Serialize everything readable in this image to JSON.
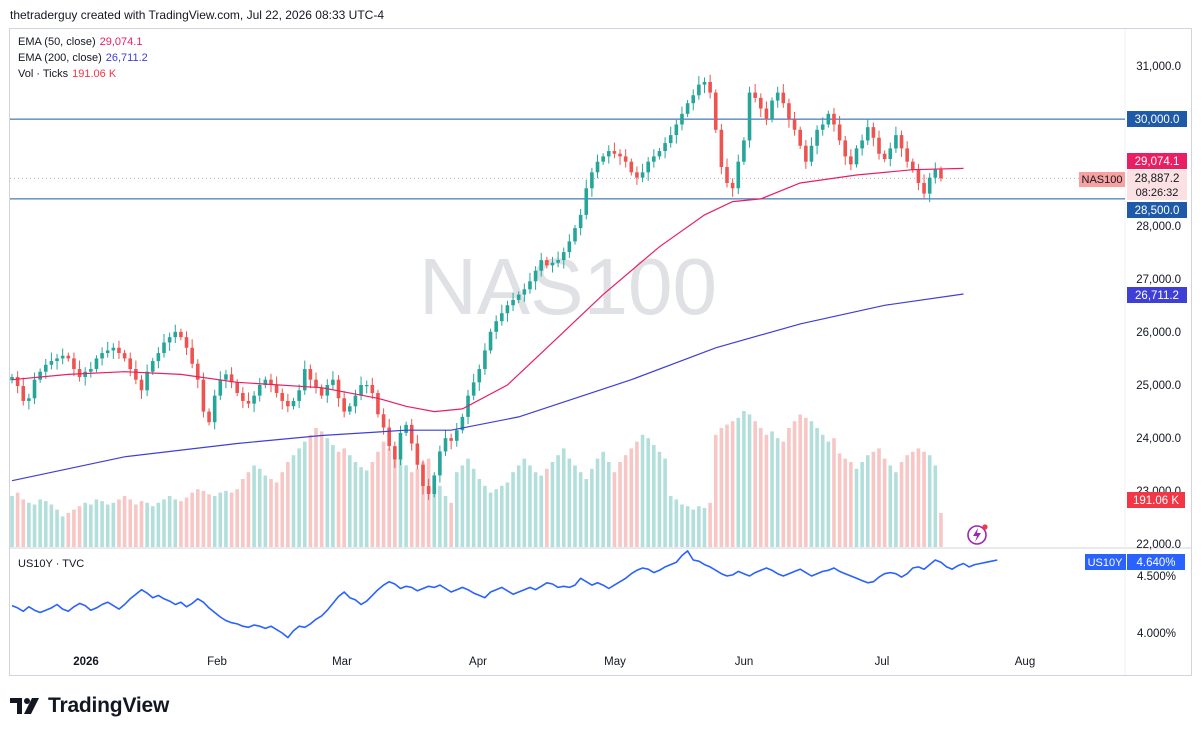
{
  "header": {
    "attribution": "thetraderguy created with TradingView.com, Jul 22, 2026 08:33 UTC-4"
  },
  "legend": {
    "ema50": {
      "label": "EMA (50, close)",
      "value": "29,074.1",
      "color": "#e91e63"
    },
    "ema200": {
      "label": "EMA (200, close)",
      "value": "26,711.2",
      "color": "#3f3fd6"
    },
    "vol": {
      "label": "Vol · Ticks",
      "value": "191.06 K",
      "color": "#f23645"
    }
  },
  "lower_pane": {
    "label": "US10Y · TVC"
  },
  "watermark": "NAS100",
  "footer": {
    "brand": "TradingView"
  },
  "price_badges": {
    "resistance": "30,000.0",
    "ema50": "29,074.1",
    "last": "28,887.2",
    "countdown": "08:26:32",
    "symbol": "NAS100",
    "support": "28,500.0",
    "ema200": "26,711.2",
    "volume": "191.06 K",
    "us10y_symbol": "US10Y",
    "us10y_value": "4.640%"
  },
  "colors": {
    "up": "#26a69a",
    "down": "#ef5350",
    "vol_up": "#b2dfdb",
    "vol_down": "#f7c6c5",
    "ema50": "#e91e63",
    "ema200": "#3f3fd6",
    "line": "#2962ff",
    "hline": "#1e5aa8"
  },
  "chart_data": [
    {
      "type": "candlestick",
      "symbol": "NAS100",
      "x_ticks": [
        "2026",
        "Feb",
        "Mar",
        "Apr",
        "May",
        "Jun",
        "Jul",
        "Aug"
      ],
      "y_ticks": [
        "31,000.0",
        "28,000.0",
        "27,000.0",
        "26,000.0",
        "25,000.0",
        "24,000.0",
        "23,000.0",
        "22,000.0"
      ],
      "ylim": [
        22000,
        31700
      ],
      "horizontal_lines": [
        30000,
        28500
      ],
      "closes": [
        25150,
        24980,
        24700,
        24750,
        25100,
        25250,
        25380,
        25450,
        25500,
        25550,
        25500,
        25300,
        25150,
        25250,
        25300,
        25500,
        25600,
        25650,
        25700,
        25600,
        25500,
        25300,
        25100,
        24900,
        25250,
        25450,
        25600,
        25800,
        25900,
        26000,
        25900,
        25700,
        25400,
        25100,
        24500,
        24300,
        24800,
        25100,
        25200,
        25050,
        24850,
        24700,
        24650,
        24800,
        25000,
        25100,
        25000,
        24850,
        24700,
        24600,
        24700,
        24900,
        25300,
        25100,
        24950,
        24800,
        25000,
        25100,
        24750,
        24500,
        24600,
        24800,
        25000,
        25000,
        24850,
        24450,
        24200,
        23850,
        23600,
        24100,
        24250,
        23900,
        23500,
        23100,
        22950,
        23300,
        23750,
        24000,
        23950,
        24150,
        24400,
        24800,
        25050,
        25300,
        25650,
        26000,
        26200,
        26350,
        26500,
        26600,
        26700,
        26800,
        26950,
        27150,
        27350,
        27250,
        27300,
        27350,
        27500,
        27700,
        27950,
        28200,
        28700,
        29000,
        29200,
        29300,
        29400,
        29350,
        29300,
        29200,
        29000,
        28900,
        29000,
        29200,
        29300,
        29400,
        29550,
        29700,
        29900,
        30100,
        30300,
        30450,
        30650,
        30700,
        30500,
        29800,
        29100,
        28800,
        28700,
        29200,
        29600,
        30500,
        30400,
        30200,
        30000,
        30350,
        30500,
        30300,
        30000,
        29800,
        29500,
        29200,
        29500,
        29800,
        29900,
        30100,
        29900,
        29600,
        29300,
        29150,
        29450,
        29600,
        29850,
        29650,
        29350,
        29250,
        29450,
        29700,
        29450,
        29200,
        29050,
        28800,
        28600,
        28900,
        29050,
        28887
      ]
    },
    {
      "type": "line",
      "name": "EMA (50, close)",
      "points": [
        [
          0,
          25100
        ],
        [
          10,
          25200
        ],
        [
          20,
          25250
        ],
        [
          30,
          25200
        ],
        [
          40,
          25050
        ],
        [
          55,
          24950
        ],
        [
          65,
          24750
        ],
        [
          70,
          24600
        ],
        [
          75,
          24500
        ],
        [
          80,
          24550
        ],
        [
          88,
          25000
        ],
        [
          95,
          25700
        ],
        [
          105,
          26700
        ],
        [
          115,
          27600
        ],
        [
          123,
          28200
        ],
        [
          128,
          28450
        ],
        [
          133,
          28500
        ],
        [
          140,
          28800
        ],
        [
          150,
          28950
        ],
        [
          160,
          29050
        ],
        [
          169,
          29074
        ]
      ]
    },
    {
      "type": "line",
      "name": "EMA (200, close)",
      "points": [
        [
          0,
          23200
        ],
        [
          20,
          23650
        ],
        [
          40,
          23900
        ],
        [
          55,
          24050
        ],
        [
          70,
          24150
        ],
        [
          78,
          24150
        ],
        [
          90,
          24400
        ],
        [
          110,
          25100
        ],
        [
          125,
          25700
        ],
        [
          140,
          26150
        ],
        [
          155,
          26500
        ],
        [
          169,
          26711
        ]
      ]
    },
    {
      "type": "bar",
      "name": "Vol · Ticks",
      "values": [
        0.3,
        0.32,
        0.28,
        0.26,
        0.25,
        0.28,
        0.27,
        0.25,
        0.22,
        0.18,
        0.2,
        0.22,
        0.24,
        0.26,
        0.25,
        0.28,
        0.27,
        0.25,
        0.26,
        0.28,
        0.3,
        0.28,
        0.25,
        0.27,
        0.26,
        0.24,
        0.26,
        0.28,
        0.3,
        0.28,
        0.27,
        0.29,
        0.32,
        0.34,
        0.33,
        0.31,
        0.3,
        0.32,
        0.33,
        0.32,
        0.34,
        0.4,
        0.44,
        0.48,
        0.46,
        0.42,
        0.4,
        0.38,
        0.44,
        0.5,
        0.54,
        0.58,
        0.62,
        0.66,
        0.7,
        0.68,
        0.64,
        0.6,
        0.56,
        0.58,
        0.54,
        0.5,
        0.47,
        0.45,
        0.5,
        0.56,
        0.62,
        0.58,
        0.54,
        0.52,
        0.48,
        0.44,
        0.46,
        0.5,
        0.52,
        0.42,
        0.36,
        0.3,
        0.26,
        0.44,
        0.48,
        0.52,
        0.46,
        0.4,
        0.36,
        0.32,
        0.34,
        0.36,
        0.38,
        0.44,
        0.48,
        0.52,
        0.48,
        0.44,
        0.42,
        0.46,
        0.5,
        0.54,
        0.58,
        0.52,
        0.48,
        0.44,
        0.4,
        0.46,
        0.52,
        0.56,
        0.5,
        0.44,
        0.5,
        0.54,
        0.58,
        0.62,
        0.66,
        0.64,
        0.6,
        0.56,
        0.52,
        0.3,
        0.28,
        0.25,
        0.24,
        0.22,
        0.24,
        0.23,
        0.26,
        0.66,
        0.7,
        0.72,
        0.74,
        0.76,
        0.8,
        0.78,
        0.74,
        0.7,
        0.66,
        0.68,
        0.64,
        0.62,
        0.7,
        0.74,
        0.78,
        0.76,
        0.74,
        0.7,
        0.66,
        0.62,
        0.64,
        0.55,
        0.52,
        0.5,
        0.46,
        0.5,
        0.54,
        0.56,
        0.58,
        0.52,
        0.48,
        0.44,
        0.5,
        0.54,
        0.56,
        0.58,
        0.56,
        0.54,
        0.48,
        0.2
      ]
    },
    {
      "type": "line",
      "name": "US10Y",
      "y_ticks": [
        "4.500%",
        "4.000%"
      ],
      "ylim": [
        3.85,
        4.72
      ],
      "values": [
        4.24,
        4.22,
        4.19,
        4.23,
        4.2,
        4.18,
        4.2,
        4.22,
        4.25,
        4.21,
        4.19,
        4.23,
        4.26,
        4.24,
        4.2,
        4.22,
        4.25,
        4.27,
        4.24,
        4.21,
        4.25,
        4.3,
        4.34,
        4.38,
        4.35,
        4.31,
        4.33,
        4.3,
        4.28,
        4.25,
        4.27,
        4.23,
        4.26,
        4.3,
        4.27,
        4.22,
        4.18,
        4.14,
        4.11,
        4.09,
        4.08,
        4.06,
        4.05,
        4.07,
        4.06,
        4.04,
        4.06,
        4.03,
        4.0,
        3.96,
        4.02,
        4.06,
        4.05,
        4.08,
        4.12,
        4.15,
        4.2,
        4.26,
        4.32,
        4.36,
        4.31,
        4.29,
        4.25,
        4.28,
        4.33,
        4.38,
        4.42,
        4.45,
        4.43,
        4.39,
        4.41,
        4.4,
        4.37,
        4.39,
        4.41,
        4.4,
        4.42,
        4.39,
        4.36,
        4.38,
        4.4,
        4.38,
        4.35,
        4.33,
        4.31,
        4.36,
        4.38,
        4.4,
        4.37,
        4.34,
        4.36,
        4.38,
        4.4,
        4.38,
        4.41,
        4.44,
        4.43,
        4.4,
        4.41,
        4.4,
        4.42,
        4.48,
        4.45,
        4.42,
        4.44,
        4.42,
        4.39,
        4.42,
        4.45,
        4.48,
        4.52,
        4.55,
        4.57,
        4.56,
        4.53,
        4.55,
        4.58,
        4.6,
        4.62,
        4.68,
        4.72,
        4.64,
        4.63,
        4.6,
        4.58,
        4.55,
        4.52,
        4.5,
        4.51,
        4.54,
        4.52,
        4.5,
        4.53,
        4.55,
        4.57,
        4.55,
        4.52,
        4.5,
        4.52,
        4.54,
        4.56,
        4.53,
        4.5,
        4.52,
        4.54,
        4.55,
        4.57,
        4.54,
        4.52,
        4.5,
        4.48,
        4.46,
        4.44,
        4.45,
        4.49,
        4.52,
        4.53,
        4.52,
        4.49,
        4.52,
        4.57,
        4.58,
        4.56,
        4.6,
        4.64,
        4.62,
        4.58,
        4.56,
        4.59,
        4.61,
        4.58,
        4.6,
        4.61,
        4.62,
        4.63,
        4.64
      ]
    }
  ]
}
